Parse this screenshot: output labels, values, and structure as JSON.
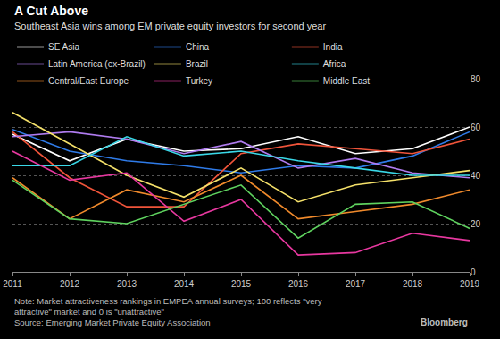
{
  "chart_data": {
    "type": "line",
    "title": "A Cut Above",
    "subtitle": "Southeast Asia wins among EM private equity investors for second year",
    "note": [
      "Note: Market attractiveness rankings in EMPEA annual surveys; 100 reflects \"very",
      "attractive\" market and 0 is \"unattractive\""
    ],
    "source": "Source: Emerging Market Private Equity Association",
    "credit": "Bloomberg",
    "x": [
      2011,
      2012,
      2013,
      2014,
      2015,
      2016,
      2017,
      2018,
      2019
    ],
    "xlim": [
      2011,
      2019
    ],
    "xticks": [
      2011,
      2012,
      2013,
      2014,
      2015,
      2016,
      2017,
      2018,
      2019
    ],
    "ylim": [
      0,
      80
    ],
    "yticks": [
      0,
      20,
      40,
      60,
      80
    ],
    "grid": true,
    "legend": "top-left",
    "series": [
      {
        "name": "SE Asia",
        "color": "#ffffff",
        "values": [
          57,
          46,
          55,
          50,
          51,
          56,
          49,
          51,
          60
        ]
      },
      {
        "name": "China",
        "color": "#2f7be8",
        "values": [
          59,
          50,
          46,
          44,
          41,
          44,
          43,
          48,
          58
        ]
      },
      {
        "name": "India",
        "color": "#f0543a",
        "values": [
          58,
          39,
          27,
          27,
          49,
          53,
          51,
          49,
          55
        ]
      },
      {
        "name": "Latin America (ex-Brazil)",
        "color": "#b07cf0",
        "values": [
          56,
          58,
          55,
          49,
          54,
          43,
          47,
          41,
          39
        ]
      },
      {
        "name": "Brazil",
        "color": "#f5e16a",
        "values": [
          66,
          53,
          40,
          31,
          43,
          29,
          36,
          39,
          42
        ]
      },
      {
        "name": "Africa",
        "color": "#3ad8e8",
        "values": [
          44,
          44,
          56,
          48,
          50,
          46,
          43,
          40,
          40
        ]
      },
      {
        "name": "Central/East Europe",
        "color": "#f08a2c",
        "values": [
          39,
          22,
          34,
          29,
          40,
          22,
          25,
          28,
          34
        ]
      },
      {
        "name": "Turkey",
        "color": "#e838a0",
        "values": [
          50,
          38,
          41,
          21,
          30,
          7,
          8,
          16,
          13
        ]
      },
      {
        "name": "Middle East",
        "color": "#5fd35f",
        "values": [
          38,
          22,
          20,
          28,
          36,
          14,
          28,
          29,
          18
        ]
      }
    ]
  }
}
